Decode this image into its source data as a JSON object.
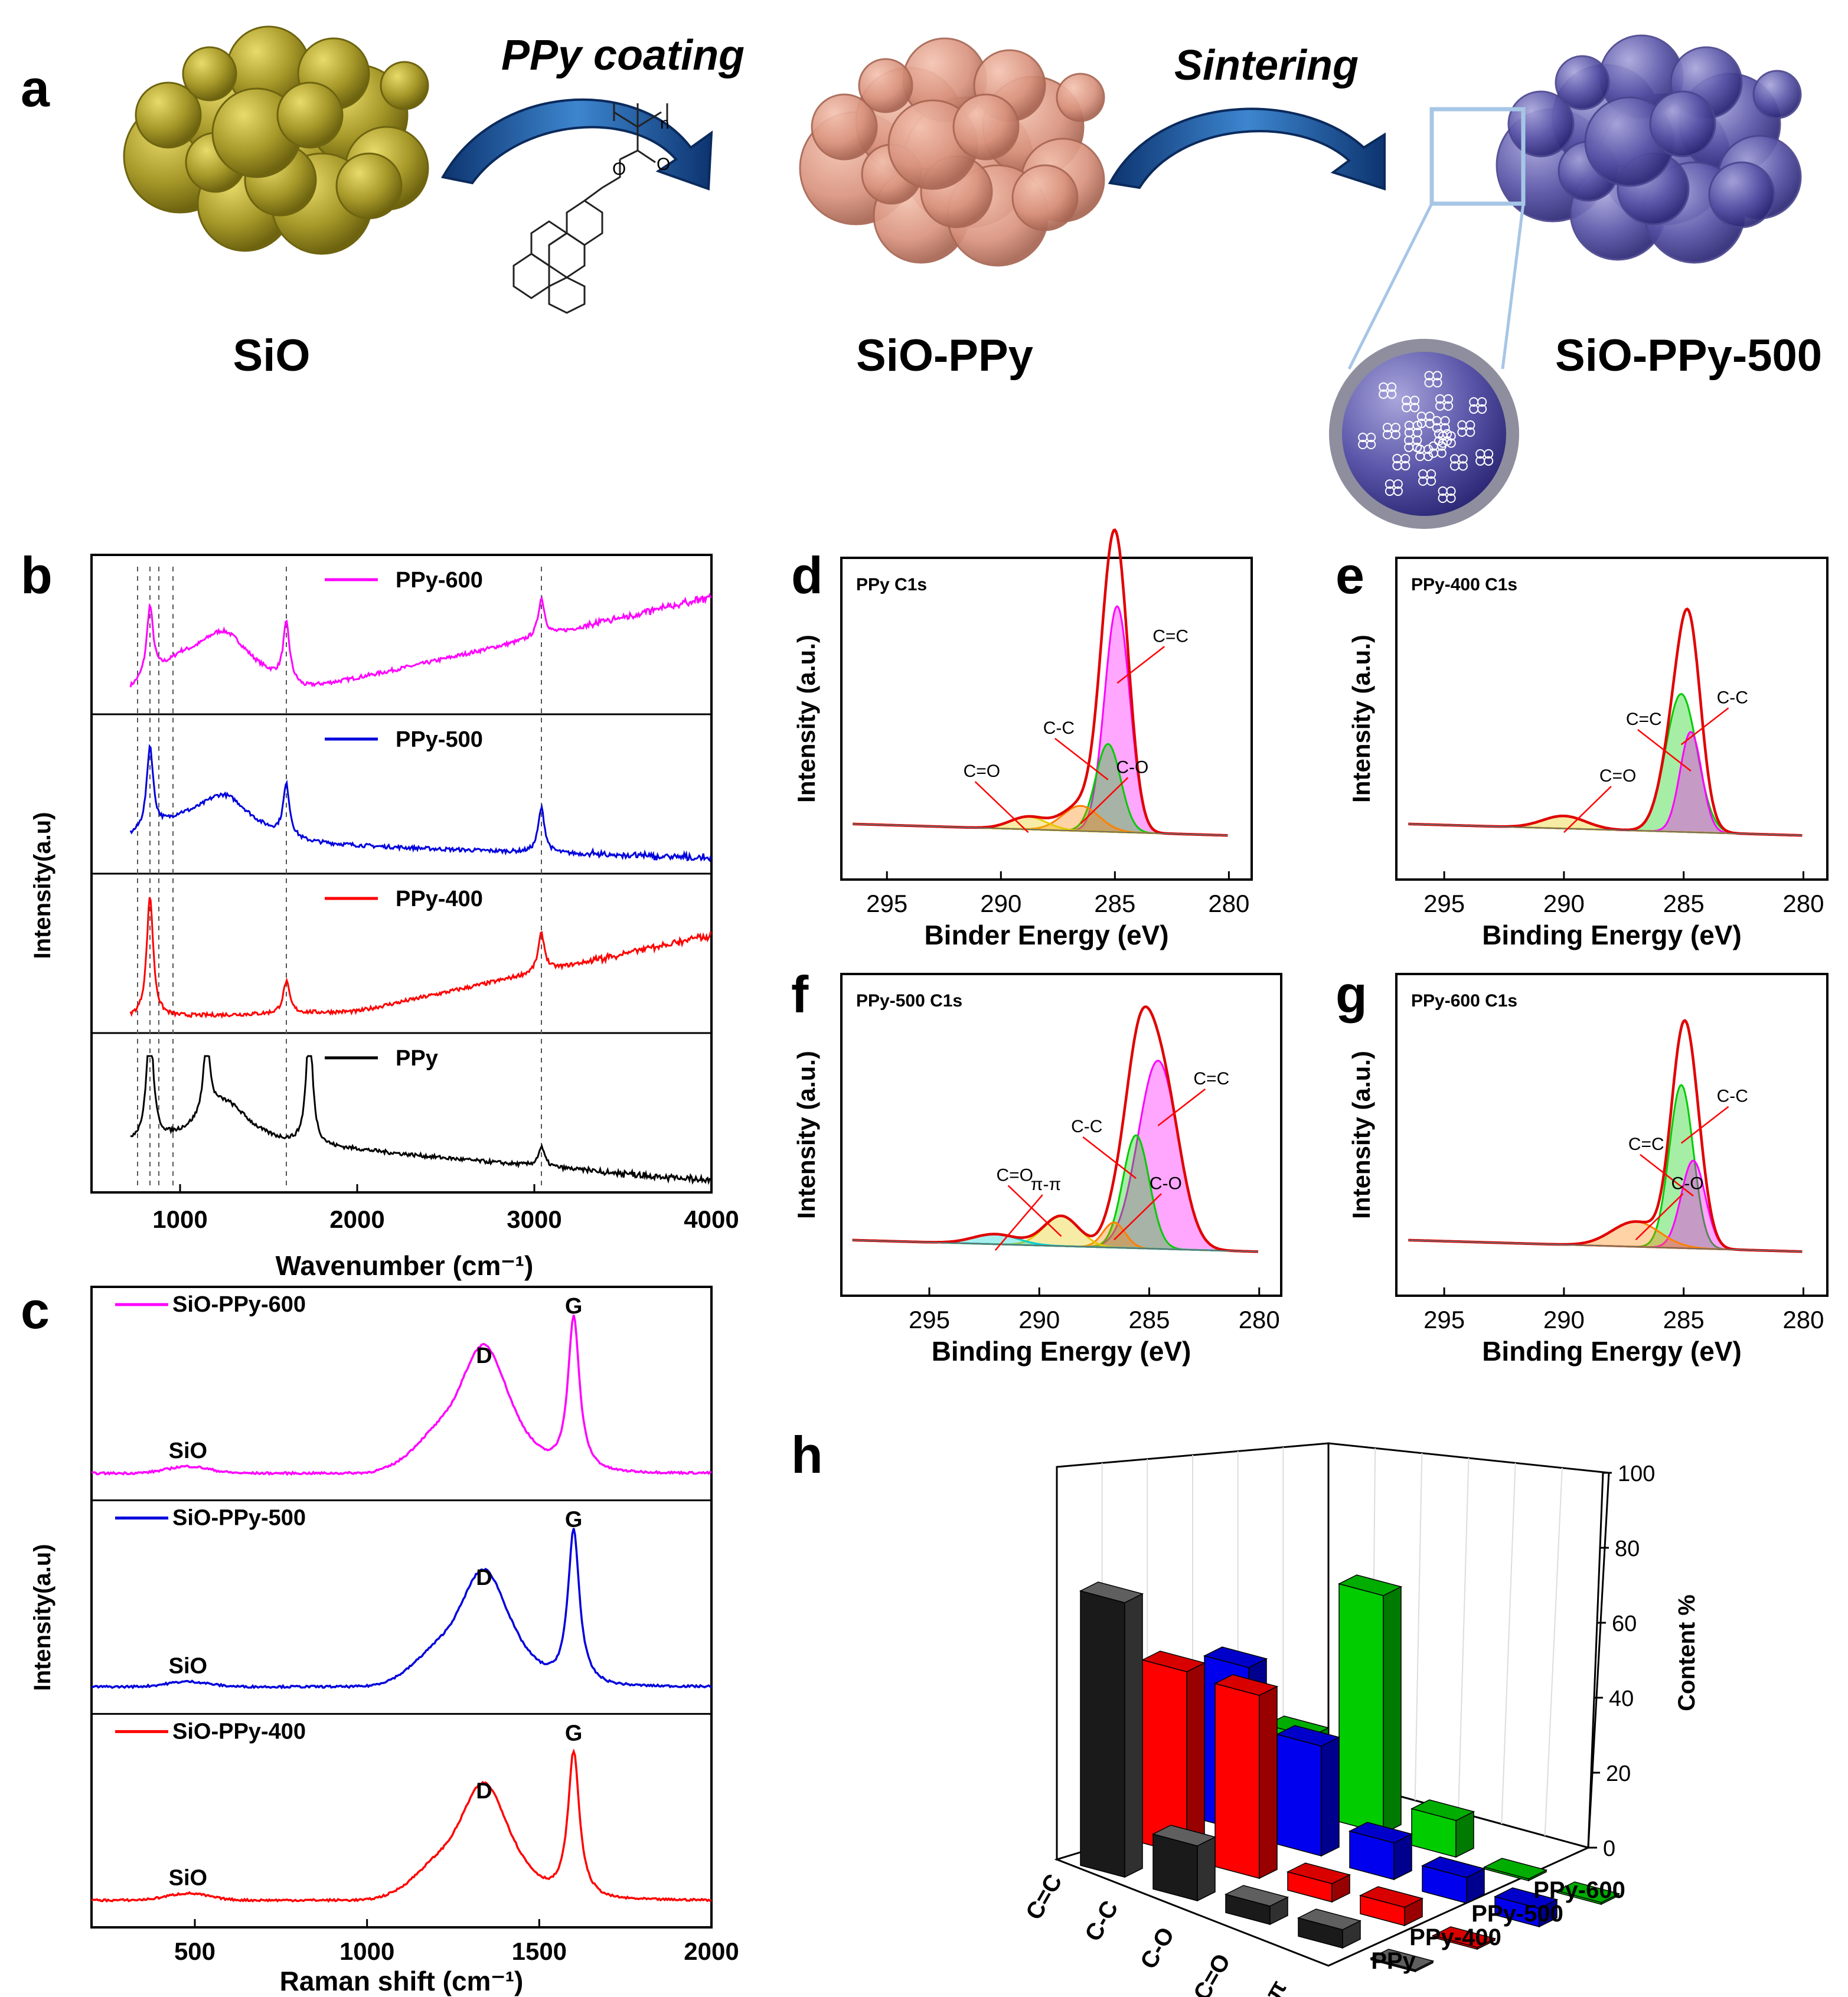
{
  "panel_letters": [
    "a",
    "b",
    "c",
    "d",
    "e",
    "f",
    "g",
    "h"
  ],
  "scheme": {
    "step1_label": "PPy coating",
    "step2_label": "Sintering",
    "materials": [
      "SiO",
      "SiO-PPy",
      "SiO-PPy-500"
    ],
    "polymer_repeat_subscript": "n",
    "polymer_ester_oxygen": "O",
    "polymer_carbonyl_oxygen": "O",
    "colors": {
      "sio": "#a89a2a",
      "sio_ppy": "#d9937e",
      "sio_ppy_500": "#5a55a8",
      "arrow": "#1f5aa0"
    }
  },
  "chart_data": [
    {
      "id": "b",
      "type": "line",
      "title": "",
      "xlabel": "Wavenumber (cm⁻¹)",
      "ylabel": "Intensity(a.u)",
      "xlim": [
        500,
        4000
      ],
      "xticks": [
        1000,
        2000,
        3000,
        4000
      ],
      "guides": [
        760,
        830,
        880,
        960,
        1600,
        3040
      ],
      "series": [
        {
          "name": "PPy-600",
          "color": "#ff00ff",
          "peaks": [
            [
              830,
              0.55
            ],
            [
              1250,
              0.35
            ],
            [
              1600,
              0.45
            ],
            [
              3040,
              0.3
            ]
          ],
          "base": [
            [
              720,
              0.1
            ],
            [
              1000,
              0.3
            ],
            [
              1700,
              0.1
            ],
            [
              4000,
              0.85
            ]
          ]
        },
        {
          "name": "PPy-500",
          "color": "#0000dd",
          "peaks": [
            [
              830,
              0.65
            ],
            [
              1250,
              0.3
            ],
            [
              1600,
              0.4
            ],
            [
              3040,
              0.35
            ]
          ],
          "base": [
            [
              720,
              0.2
            ],
            [
              1000,
              0.3
            ],
            [
              1700,
              0.15
            ],
            [
              4000,
              0.05
            ]
          ]
        },
        {
          "name": "PPy-400",
          "color": "#ff0000",
          "peaks": [
            [
              830,
              0.95
            ],
            [
              1600,
              0.25
            ],
            [
              3040,
              0.3
            ]
          ],
          "base": [
            [
              720,
              0.05
            ],
            [
              2000,
              0.1
            ],
            [
              4000,
              0.7
            ]
          ]
        },
        {
          "name": "PPy",
          "color": "#000000",
          "peaks": [
            [
              830,
              0.95
            ],
            [
              1150,
              0.6
            ],
            [
              1250,
              0.35
            ],
            [
              1730,
              0.95
            ],
            [
              3040,
              0.15
            ]
          ],
          "base": [
            [
              720,
              0.3
            ],
            [
              2000,
              0.25
            ],
            [
              4000,
              0.02
            ]
          ]
        }
      ]
    },
    {
      "id": "c",
      "type": "line",
      "title": "",
      "xlabel": "Raman shift (cm⁻¹)",
      "ylabel": "Intensity(a.u)",
      "xlim": [
        200,
        2000
      ],
      "xticks": [
        500,
        1000,
        1500,
        2000
      ],
      "peak_labels": [
        "SiO",
        "D",
        "G"
      ],
      "series": [
        {
          "name": "SiO-PPy-600",
          "color": "#ff00ff",
          "D": 0.55,
          "G": 0.9,
          "SiO": 0.04
        },
        {
          "name": "SiO-PPy-500",
          "color": "#0000dd",
          "D": 0.5,
          "G": 0.9,
          "SiO": 0.03
        },
        {
          "name": "SiO-PPy-400",
          "color": "#ff0000",
          "D": 0.5,
          "G": 0.85,
          "SiO": 0.04
        }
      ]
    },
    {
      "id": "d",
      "type": "area",
      "title": "PPy C1s",
      "xlabel": "Binder Energy (eV)",
      "ylabel": "Intensity (a.u.)",
      "xlim": [
        297,
        279
      ],
      "xticks": [
        295,
        290,
        285,
        280
      ],
      "components": [
        {
          "name": "C=C",
          "center": 284.9,
          "height": 0.9,
          "width": 0.55,
          "color": "#ff00ff"
        },
        {
          "name": "C-C",
          "center": 285.3,
          "height": 0.35,
          "width": 0.55,
          "color": "#00cc00"
        },
        {
          "name": "C-O",
          "center": 286.5,
          "height": 0.1,
          "width": 0.8,
          "color": "#ff8000"
        },
        {
          "name": "C=O",
          "center": 288.8,
          "height": 0.05,
          "width": 0.8,
          "color": "#e6c800"
        }
      ]
    },
    {
      "id": "e",
      "type": "area",
      "title": "PPy-400 C1s",
      "xlabel": "Binding Energy (eV)",
      "ylabel": "Intensity (a.u.)",
      "xlim": [
        297,
        279
      ],
      "xticks": [
        295,
        290,
        285,
        280
      ],
      "components": [
        {
          "name": "C-C",
          "center": 285.1,
          "height": 0.55,
          "width": 0.65,
          "color": "#00cc00"
        },
        {
          "name": "C=C",
          "center": 284.7,
          "height": 0.4,
          "width": 0.45,
          "color": "#ff00ff"
        },
        {
          "name": "C=O",
          "center": 290.0,
          "height": 0.05,
          "width": 0.9,
          "color": "#e6c800"
        }
      ]
    },
    {
      "id": "f",
      "type": "area",
      "title": "PPy-500 C1s",
      "xlabel": "Binding Energy (eV)",
      "ylabel": "Intensity (a.u.)",
      "xlim": [
        299,
        279
      ],
      "xticks": [
        295,
        290,
        285,
        280
      ],
      "components": [
        {
          "name": "C=C",
          "center": 284.6,
          "height": 0.75,
          "width": 0.9,
          "color": "#ff00ff"
        },
        {
          "name": "C-C",
          "center": 285.6,
          "height": 0.45,
          "width": 0.6,
          "color": "#00cc00"
        },
        {
          "name": "C-O",
          "center": 286.6,
          "height": 0.1,
          "width": 0.5,
          "color": "#ff8000"
        },
        {
          "name": "C=O",
          "center": 289.0,
          "height": 0.12,
          "width": 0.8,
          "color": "#e6c800"
        },
        {
          "name": "π-π",
          "center": 292.0,
          "height": 0.04,
          "width": 1.0,
          "color": "#00d0d0"
        }
      ]
    },
    {
      "id": "g",
      "type": "area",
      "title": "PPy-600 C1s",
      "xlabel": "Binding Energy (eV)",
      "ylabel": "Intensity (a.u.)",
      "xlim": [
        297,
        279
      ],
      "xticks": [
        295,
        290,
        285,
        280
      ],
      "components": [
        {
          "name": "C-C",
          "center": 285.1,
          "height": 0.65,
          "width": 0.5,
          "color": "#00cc00"
        },
        {
          "name": "C=C",
          "center": 284.6,
          "height": 0.35,
          "width": 0.5,
          "color": "#ff00ff"
        },
        {
          "name": "C-O",
          "center": 287.0,
          "height": 0.1,
          "width": 1.0,
          "color": "#ff8000"
        }
      ]
    },
    {
      "id": "h",
      "type": "bar",
      "title": "",
      "zlabel": "Content %",
      "zlim": [
        0,
        100
      ],
      "zticks": [
        0,
        20,
        40,
        60,
        80,
        100
      ],
      "categories": [
        "C=C",
        "C-C",
        "C-O",
        "C=O",
        "π-π"
      ],
      "series": [
        {
          "name": "PPy",
          "color": "#000000",
          "values": [
            75,
            15,
            5,
            5,
            0
          ]
        },
        {
          "name": "PPy-400",
          "color": "#ff0000",
          "values": [
            50,
            50,
            5,
            5,
            0
          ]
        },
        {
          "name": "PPy-500",
          "color": "#0000ee",
          "values": [
            45,
            30,
            10,
            7,
            5
          ]
        },
        {
          "name": "PPy-600",
          "color": "#00cc00",
          "values": [
            20,
            65,
            10,
            0,
            0
          ]
        }
      ]
    }
  ]
}
